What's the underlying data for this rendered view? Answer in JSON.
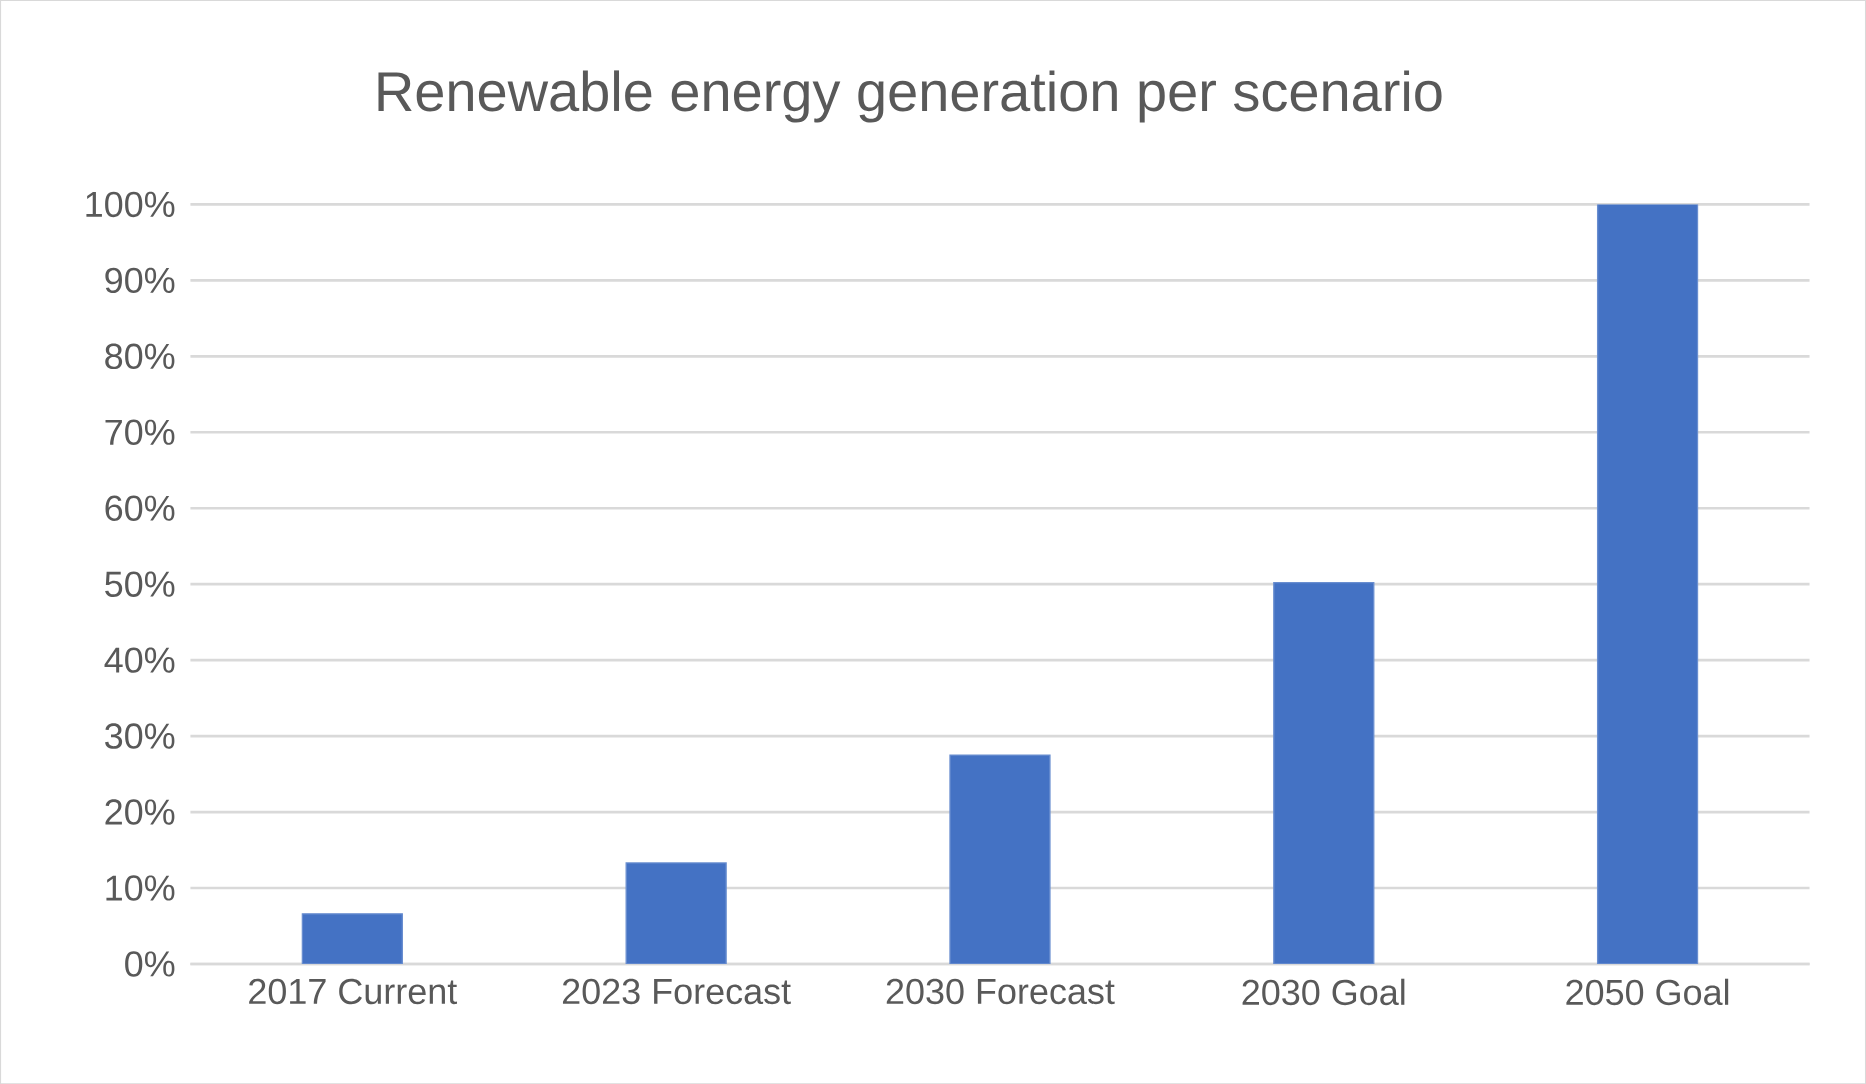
{
  "chart_data": {
    "type": "bar",
    "title": "Renewable energy generation per scenario",
    "categories": [
      "2017 Current",
      "2023 Forecast",
      "2030 Forecast",
      "2030 Goal",
      "2050 Goal"
    ],
    "values": [
      6.6,
      13.3,
      27.5,
      50.2,
      100
    ],
    "color": "#4472c4",
    "ylim": [
      0,
      100
    ],
    "yticks": [
      {
        "value": 0,
        "label": "0%"
      },
      {
        "value": 10,
        "label": "10%"
      },
      {
        "value": 20,
        "label": "20%"
      },
      {
        "value": 30,
        "label": "30%"
      },
      {
        "value": 40,
        "label": "40%"
      },
      {
        "value": 50,
        "label": "50%"
      },
      {
        "value": 60,
        "label": "60%"
      },
      {
        "value": 70,
        "label": "70%"
      },
      {
        "value": 80,
        "label": "80%"
      },
      {
        "value": 90,
        "label": "90%"
      },
      {
        "value": 100,
        "label": "100%"
      }
    ],
    "grid": "y"
  }
}
